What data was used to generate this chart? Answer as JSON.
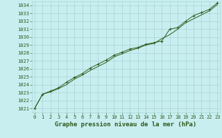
{
  "title": "Graphe pression niveau de la mer (hPa)",
  "x_values": [
    0,
    1,
    2,
    3,
    4,
    5,
    6,
    7,
    8,
    9,
    10,
    11,
    12,
    13,
    14,
    15,
    16,
    17,
    18,
    19,
    20,
    21,
    22,
    23
  ],
  "y_line1": [
    1021.0,
    1022.8,
    1023.1,
    1023.5,
    1024.0,
    1024.7,
    1025.2,
    1025.8,
    1026.3,
    1026.8,
    1027.5,
    1027.9,
    1028.3,
    1028.6,
    1029.0,
    1029.2,
    1029.8,
    1030.3,
    1031.0,
    1031.8,
    1032.3,
    1032.8,
    1033.3,
    1034.1
  ],
  "y_line2": [
    1021.0,
    1022.8,
    1023.2,
    1023.6,
    1024.3,
    1024.9,
    1025.4,
    1026.1,
    1026.6,
    1027.1,
    1027.7,
    1028.1,
    1028.5,
    1028.7,
    1029.1,
    1029.3,
    1029.5,
    1031.0,
    1031.2,
    1032.0,
    1032.7,
    1033.1,
    1033.5,
    1034.3
  ],
  "ylim_min": 1021,
  "ylim_max": 1034,
  "yticks": [
    1021,
    1022,
    1023,
    1024,
    1025,
    1026,
    1027,
    1028,
    1029,
    1030,
    1031,
    1032,
    1033,
    1034
  ],
  "xlim_min": 0,
  "xlim_max": 23,
  "xticks": [
    0,
    1,
    2,
    3,
    4,
    5,
    6,
    7,
    8,
    9,
    10,
    11,
    12,
    13,
    14,
    15,
    16,
    17,
    18,
    19,
    20,
    21,
    22,
    23
  ],
  "line_color": "#2d5a1b",
  "bg_color": "#c8eef0",
  "grid_color": "#9ecece",
  "text_color": "#2d5a1b",
  "tick_fontsize": 5.0,
  "title_fontsize": 6.5,
  "marker_size": 2.5,
  "linewidth": 0.7
}
